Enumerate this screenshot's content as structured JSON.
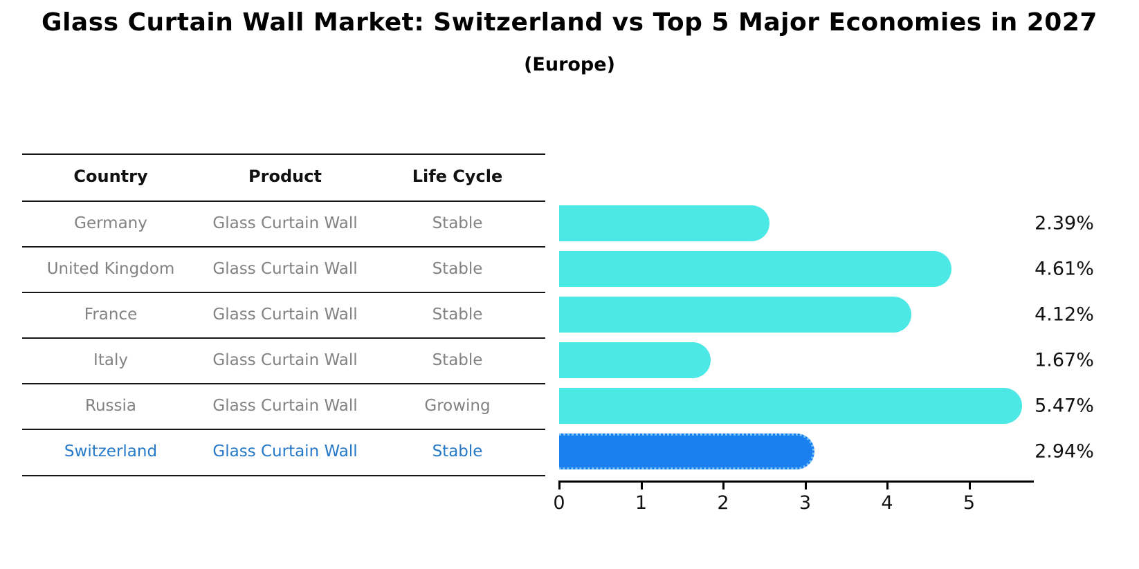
{
  "title": "Glass Curtain Wall Market: Switzerland vs Top 5 Major Economies in 2027",
  "subtitle": "(Europe)",
  "table": {
    "headers": [
      "Country",
      "Product",
      "Life Cycle"
    ],
    "rows": [
      {
        "country": "Germany",
        "product": "Glass Curtain Wall",
        "life_cycle": "Stable",
        "highlight": false
      },
      {
        "country": "United Kingdom",
        "product": "Glass Curtain Wall",
        "life_cycle": "Stable",
        "highlight": false
      },
      {
        "country": "France",
        "product": "Glass Curtain Wall",
        "life_cycle": "Stable",
        "highlight": false
      },
      {
        "country": "Italy",
        "product": "Glass Curtain Wall",
        "life_cycle": "Stable",
        "highlight": false
      },
      {
        "country": "Russia",
        "product": "Glass Curtain Wall",
        "life_cycle": "Growing",
        "highlight": false
      },
      {
        "country": "Switzerland",
        "product": "Glass Curtain Wall",
        "life_cycle": "Stable",
        "highlight": true
      }
    ]
  },
  "chart_data": {
    "type": "bar",
    "orientation": "horizontal",
    "categories": [
      "Germany",
      "United Kingdom",
      "France",
      "Italy",
      "Russia",
      "Switzerland"
    ],
    "values": [
      2.39,
      4.61,
      4.12,
      1.67,
      5.47,
      2.94
    ],
    "value_labels": [
      "2.39%",
      "4.61%",
      "4.12%",
      "1.67%",
      "5.47%",
      "2.94%"
    ],
    "highlight_index": 5,
    "xlim": [
      0,
      5.79
    ],
    "xticks": [
      "0",
      "1",
      "2",
      "3",
      "4",
      "5"
    ],
    "xlabel": "",
    "ylabel": "",
    "legend": "none",
    "grid": "off",
    "bar_color": "#4BE8E6",
    "highlight_bar_color": "#1A80F0",
    "highlight_text_color": "#2579C8",
    "row_text_color": "#828282"
  }
}
